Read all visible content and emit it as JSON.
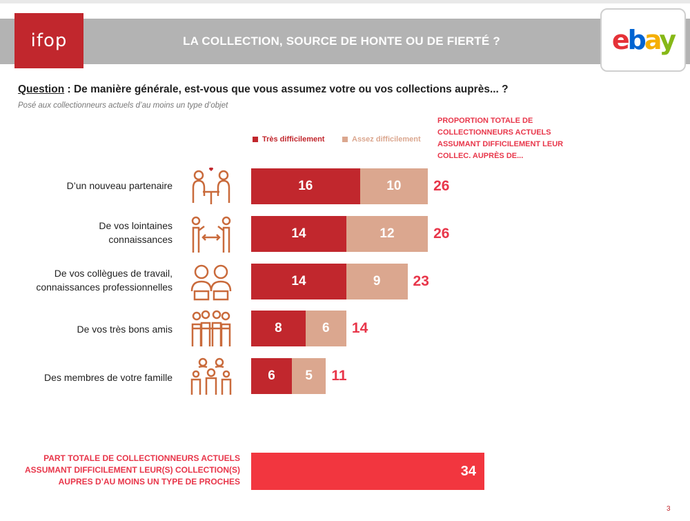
{
  "header": {
    "title": "LA COLLECTION, SOURCE DE HONTE OU DE FIERTÉ ?",
    "ifop_logo": "ifop",
    "ebay_logo": {
      "e": "e",
      "b": "b",
      "a": "a",
      "y": "y"
    }
  },
  "question": {
    "label": "Question",
    "text": " : De manière générale, est-vous que vous assumez votre ou vos collections auprès... ?",
    "sub": "Posé aux collectionneurs actuels d’au moins un type d’objet"
  },
  "right_note": "PROPORTION TOTALE DE COLLECTIONNEURS ACTUELS ASSUMANT DIFFICILEMENT LEUR COLLEC. AUPRÈS DE...",
  "colors": {
    "tres": "#c1272d",
    "assez": "#dba78f",
    "total": "#e8364a",
    "summary_bar": "#f2363f",
    "icon": "#c96a3b"
  },
  "chart_data": {
    "type": "bar",
    "orientation": "horizontal",
    "stacked": true,
    "categories": [
      "D’un nouveau partenaire",
      "De vos lointaines connaissances",
      "De vos collègues de travail, connaissances professionnelles",
      "De vos très bons amis",
      "Des membres de votre famille"
    ],
    "category_lines": [
      [
        "D’un nouveau partenaire"
      ],
      [
        "De vos lointaines",
        "connaissances"
      ],
      [
        "De vos collègues de travail,",
        "connaissances professionnelles"
      ],
      [
        "De vos très bons amis"
      ],
      [
        "Des membres de votre famille"
      ]
    ],
    "series": [
      {
        "name": "Très difficilement",
        "values": [
          16,
          14,
          14,
          8,
          6
        ]
      },
      {
        "name": "Assez difficilement",
        "values": [
          10,
          12,
          9,
          6,
          5
        ]
      }
    ],
    "totals": [
      26,
      26,
      23,
      14,
      11
    ],
    "legend_position": "top",
    "icons": [
      "couple-icon",
      "distance-icon",
      "colleagues-icon",
      "friends-icon",
      "family-icon"
    ]
  },
  "summary": {
    "label_lines": [
      "PART TOTALE DE COLLECTIONNEURS ACTUELS",
      "ASSUMANT DIFFICILEMENT LEUR(S) COLLECTION(S)",
      "AUPRES D’AU MOINS UN TYPE DE PROCHES"
    ],
    "value": 34
  },
  "page_number": "3"
}
